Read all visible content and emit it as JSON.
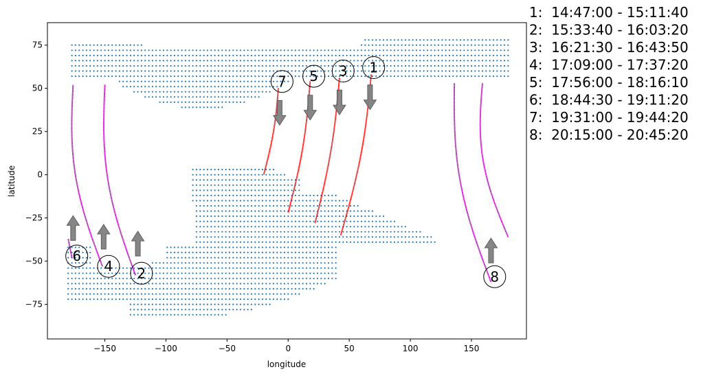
{
  "chart_data": {
    "type": "scatter",
    "xlabel": "longitude",
    "ylabel": "latitude",
    "xlim": [
      -197,
      195
    ],
    "ylim": [
      -95,
      88
    ],
    "x_ticks": [
      -150,
      -100,
      -50,
      0,
      50,
      100,
      150
    ],
    "x_tick_labels": [
      "−150",
      "−100",
      "−50",
      "0",
      "50",
      "100",
      "150"
    ],
    "y_ticks": [
      -75,
      -50,
      -25,
      0,
      25,
      50,
      75
    ],
    "y_tick_labels": [
      "−75",
      "−50",
      "−25",
      "0",
      "25",
      "50",
      "75"
    ],
    "grid": false,
    "legend_placement": "outside-right",
    "colors": {
      "coverage_points": "#1f77b4",
      "descending_track": "#ff0000",
      "ascending_track": "#c000c0",
      "arrow": "#808080"
    },
    "coverage_grid": {
      "description_key": "blue dot coverage points",
      "step": 3,
      "regions": [
        {
          "xmin": -180,
          "xmax": 180,
          "ymin": 55,
          "ymax": 78,
          "shape": "north-band"
        },
        {
          "xmin": -90,
          "xmax": 10,
          "ymin": 38,
          "ymax": 55,
          "shape": "north-bulge"
        },
        {
          "xmin": -80,
          "xmax": 120,
          "ymin": -42,
          "ymax": 3,
          "shape": "south-wedge"
        },
        {
          "xmin": -180,
          "xmax": 180,
          "ymin": -88,
          "ymax": -42,
          "shape": "south-band"
        }
      ]
    },
    "passes": [
      {
        "id": "1",
        "label": "1",
        "time": "14:47:00 - 15:11:40",
        "direction": "descending",
        "start": [
          68,
          58
        ],
        "end": [
          43,
          -35
        ],
        "curvature": 4
      },
      {
        "id": "2",
        "label": "2",
        "time": "15:33:40 - 16:03:20",
        "direction": "ascending",
        "start": [
          -125,
          -58
        ],
        "end": [
          -150,
          52
        ],
        "curvature": -10
      },
      {
        "id": "3",
        "label": "3",
        "time": "16:21:30 - 16:43:50",
        "direction": "descending",
        "start": [
          42,
          56
        ],
        "end": [
          22,
          -28
        ],
        "curvature": 3
      },
      {
        "id": "4",
        "label": "4",
        "time": "17:09:00 - 17:37:20",
        "direction": "ascending",
        "start": [
          -152,
          -53
        ],
        "end": [
          -176,
          52
        ],
        "curvature": -10
      },
      {
        "id": "5",
        "label": "5",
        "time": "17:56:00 - 18:16:10",
        "direction": "descending",
        "start": [
          18,
          54
        ],
        "end": [
          0,
          -22
        ],
        "curvature": 3
      },
      {
        "id": "6",
        "label": "6",
        "time": "18:44:30 - 19:11:20",
        "direction": "ascending",
        "start": [
          -177,
          -48
        ],
        "end": [
          -180,
          -37
        ],
        "curvature": 0
      },
      {
        "id": "7",
        "label": "7",
        "time": "19:31:00 - 19:44:20",
        "direction": "descending",
        "start": [
          -8,
          50
        ],
        "end": [
          -20,
          0
        ],
        "curvature": 2
      },
      {
        "id": "8",
        "label": "8",
        "time": "20:15:00 - 20:45:20",
        "direction": "ascending",
        "start": [
          166,
          -62
        ],
        "end": [
          136,
          53
        ],
        "curvature": -10
      },
      {
        "id": "8b",
        "label": "",
        "time": "",
        "direction": "ascending",
        "start": [
          180,
          -36
        ],
        "end": [
          159,
          53
        ],
        "curvature": -10
      }
    ],
    "pass_markers": [
      {
        "label": "1",
        "x": 70,
        "y": 62,
        "arrow": "down",
        "arrow_x": 67,
        "arrow_y": 52
      },
      {
        "label": "2",
        "x": -120,
        "y": -57,
        "arrow": "up",
        "arrow_x": -123,
        "arrow_y": -47
      },
      {
        "label": "3",
        "x": 45,
        "y": 60,
        "arrow": "down",
        "arrow_x": 42,
        "arrow_y": 49
      },
      {
        "label": "4",
        "x": -147,
        "y": -53,
        "arrow": "up",
        "arrow_x": -151,
        "arrow_y": -43
      },
      {
        "label": "5",
        "x": 21,
        "y": 57,
        "arrow": "down",
        "arrow_x": 18,
        "arrow_y": 46
      },
      {
        "label": "6",
        "x": -173,
        "y": -47,
        "arrow": "up",
        "arrow_x": -176,
        "arrow_y": -38
      },
      {
        "label": "7",
        "x": -5,
        "y": 54,
        "arrow": "down",
        "arrow_x": -7,
        "arrow_y": 43
      },
      {
        "label": "8",
        "x": 169,
        "y": -59,
        "arrow": "up",
        "arrow_x": 166,
        "arrow_y": -51
      }
    ],
    "legend": [
      "1:  14:47:00 - 15:11:40",
      "2:  15:33:40 - 16:03:20",
      "3:  16:21:30 - 16:43:50",
      "4:  17:09:00 - 17:37:20",
      "5:  17:56:00 - 18:16:10",
      "6:  18:44:30 - 19:11:20",
      "7:  19:31:00 - 19:44:20",
      "8:  20:15:00 - 20:45:20"
    ]
  }
}
